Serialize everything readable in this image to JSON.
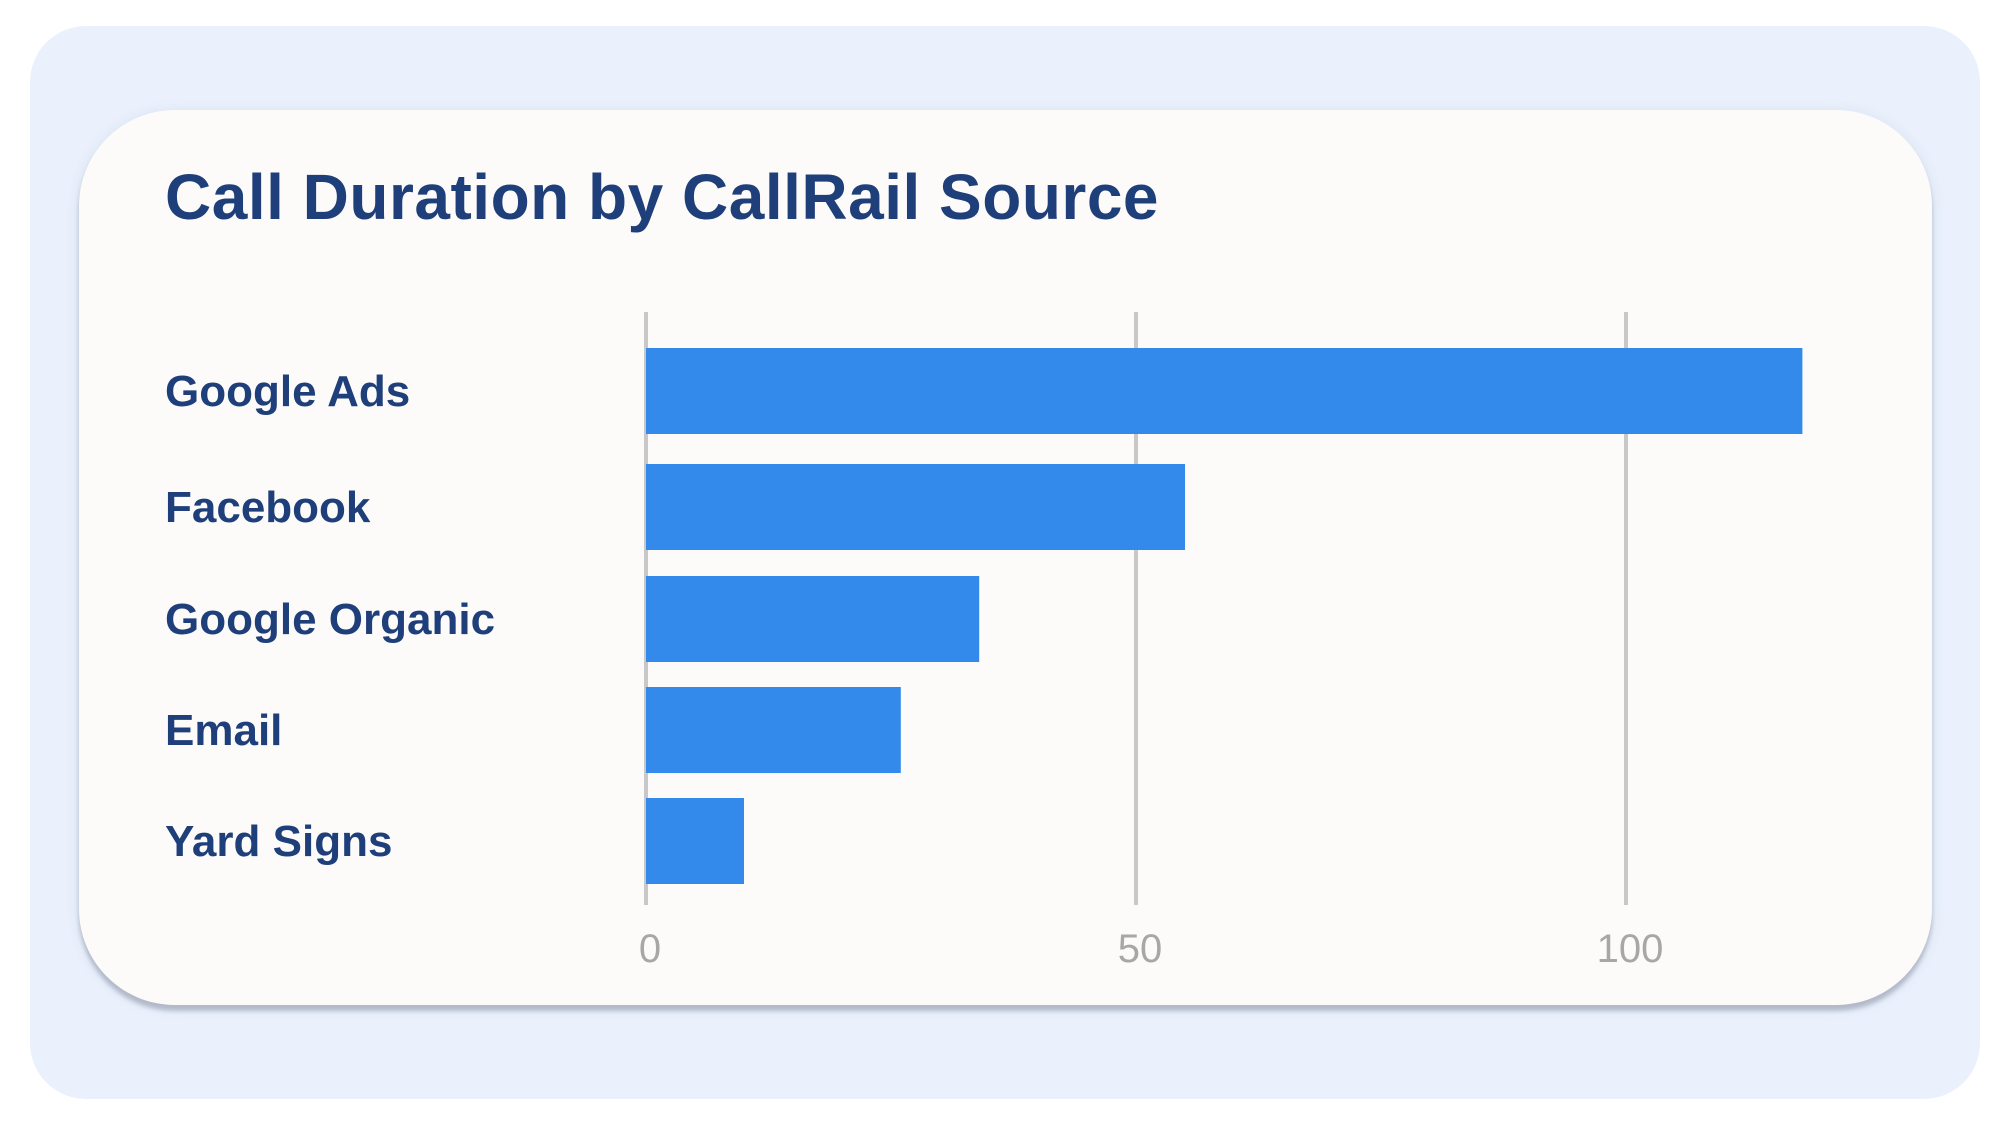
{
  "chart_data": {
    "type": "bar",
    "orientation": "horizontal",
    "title": "Call Duration by CallRail Source",
    "xlabel": "",
    "ylabel": "",
    "categories": [
      "Google Ads",
      "Facebook",
      "Google Organic",
      "Email",
      "Yard Signs"
    ],
    "values": [
      118,
      55,
      34,
      26,
      10
    ],
    "xlim": [
      0,
      120
    ],
    "xticks": [
      0,
      50,
      100
    ],
    "xtick_labels": [
      "0",
      "50",
      "100"
    ],
    "grid": "vertical",
    "legend": "none",
    "colors": {
      "bar": "#348aea",
      "title": "#1f3f7a",
      "label": "#1f3f7a",
      "tick_label": "#a7a7a7",
      "gridline": "#c8c8c8",
      "card": "#fcfbfa",
      "background": "#eaf1fd"
    }
  }
}
